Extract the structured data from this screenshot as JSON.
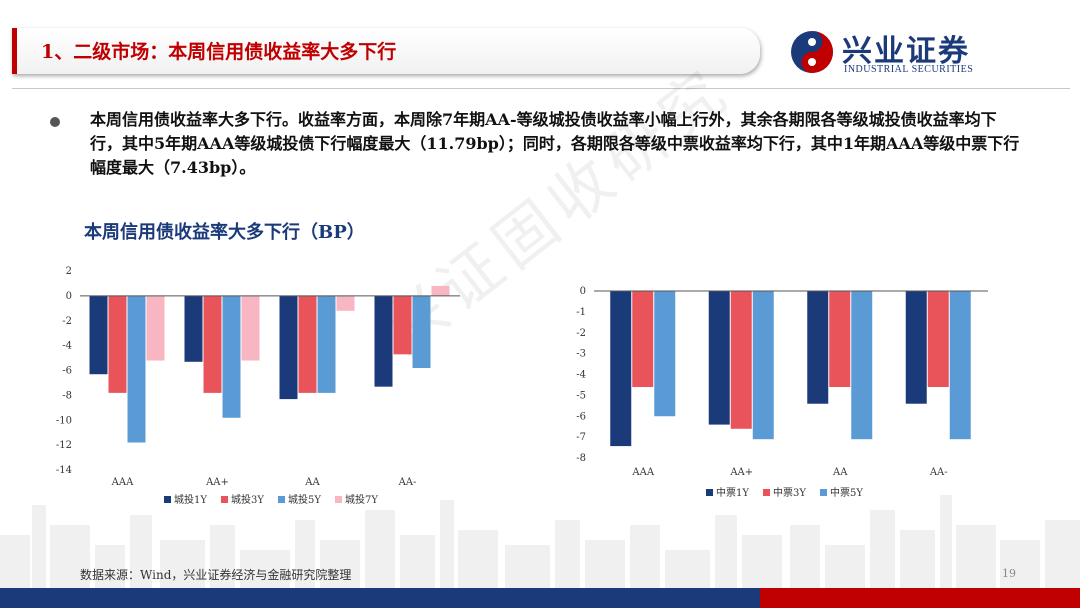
{
  "header": {
    "title": "1、二级市场：本周信用债收益率大多下行",
    "logo_cn": "兴业证券",
    "logo_en": "INDUSTRIAL SECURITIES"
  },
  "summary": "本周信用债收益率大多下行。收益率方面，本周除7年期AA-等级城投债收益率小幅上行外，其余各期限各等级城投债收益率均下行，其中5年期AAA等级城投债下行幅度最大（11.79bp）；同时，各期限各等级中票收益率均下行，其中1年期AAA等级中票下行幅度最大（7.43bp）。",
  "chart_title": "本周信用债收益率大多下行（BP）",
  "watermark": "兴证固收研究",
  "chart_data": [
    {
      "type": "bar",
      "categories": [
        "AAA",
        "AA+",
        "AA",
        "AA-"
      ],
      "ylim": [
        -14,
        2
      ],
      "yticks": [
        2,
        0,
        -2,
        -4,
        -6,
        -8,
        -10,
        -12,
        -14
      ],
      "grid": false,
      "legend": "bottom",
      "series": [
        {
          "name": "城投1Y",
          "color": "#1b3a7a",
          "values": [
            -6.3,
            -5.3,
            -8.3,
            -7.3
          ]
        },
        {
          "name": "城投3Y",
          "color": "#e8545a",
          "values": [
            -7.8,
            -7.8,
            -7.8,
            -4.7
          ]
        },
        {
          "name": "城投5Y",
          "color": "#5b9bd5",
          "values": [
            -11.79,
            -9.8,
            -7.8,
            -5.8
          ]
        },
        {
          "name": "城投7Y",
          "color": "#f7b6c2",
          "values": [
            -5.2,
            -5.2,
            -1.2,
            0.8
          ]
        }
      ]
    },
    {
      "type": "bar",
      "categories": [
        "AAA",
        "AA+",
        "AA",
        "AA-"
      ],
      "ylim": [
        -8,
        0
      ],
      "yticks": [
        0,
        -1,
        -2,
        -3,
        -4,
        -5,
        -6,
        -7,
        -8
      ],
      "grid": false,
      "legend": "bottom",
      "series": [
        {
          "name": "中票1Y",
          "color": "#1b3a7a",
          "values": [
            -7.43,
            -6.4,
            -5.4,
            -5.4
          ]
        },
        {
          "name": "中票3Y",
          "color": "#e8545a",
          "values": [
            -4.6,
            -6.6,
            -4.6,
            -4.6
          ]
        },
        {
          "name": "中票5Y",
          "color": "#5b9bd5",
          "values": [
            -6.0,
            -7.1,
            -7.1,
            -7.1
          ]
        }
      ]
    }
  ],
  "footer": {
    "source": "数据来源：Wind，兴业证券经济与金融研究院整理",
    "page": "19"
  }
}
